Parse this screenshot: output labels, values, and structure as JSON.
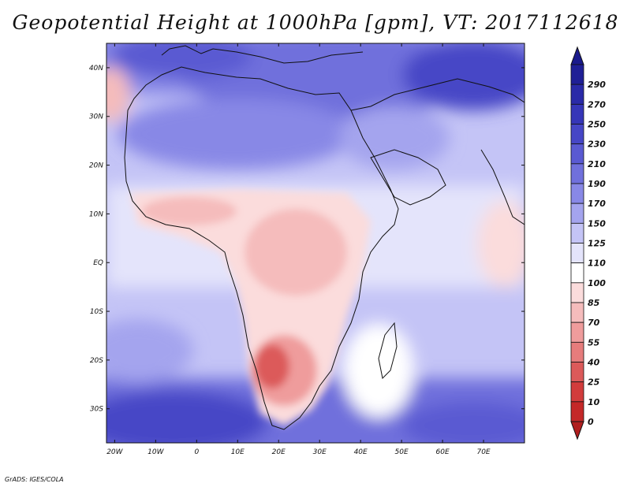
{
  "title": "Geopotential Height at 1000hPa [gpm], VT: 2017112618",
  "credit": "GrADS: IGES/COLA",
  "map": {
    "lon_range": [
      -22,
      80
    ],
    "lat_range": [
      -37,
      45
    ],
    "lon_ticks": [
      {
        "value": -20,
        "label": "20W"
      },
      {
        "value": -10,
        "label": "10W"
      },
      {
        "value": 0,
        "label": "0"
      },
      {
        "value": 10,
        "label": "10E"
      },
      {
        "value": 20,
        "label": "20E"
      },
      {
        "value": 30,
        "label": "30E"
      },
      {
        "value": 40,
        "label": "40E"
      },
      {
        "value": 50,
        "label": "50E"
      },
      {
        "value": 60,
        "label": "60E"
      },
      {
        "value": 70,
        "label": "70E"
      }
    ],
    "lat_ticks": [
      {
        "value": 40,
        "label": "40N"
      },
      {
        "value": 30,
        "label": "30N"
      },
      {
        "value": 20,
        "label": "20N"
      },
      {
        "value": 10,
        "label": "10N"
      },
      {
        "value": 0,
        "label": "EQ"
      },
      {
        "value": -10,
        "label": "10S"
      },
      {
        "value": -20,
        "label": "20S"
      },
      {
        "value": -30,
        "label": "30S"
      }
    ]
  },
  "colorbar": {
    "levels": [
      {
        "label": "290",
        "color": "#1f1f96"
      },
      {
        "label": "270",
        "color": "#2a2aa8"
      },
      {
        "label": "250",
        "color": "#3636b8"
      },
      {
        "label": "230",
        "color": "#4646c6"
      },
      {
        "label": "210",
        "color": "#5a5ad2"
      },
      {
        "label": "190",
        "color": "#7070dc"
      },
      {
        "label": "170",
        "color": "#8888e6"
      },
      {
        "label": "150",
        "color": "#a4a4ee"
      },
      {
        "label": "125",
        "color": "#c4c4f6"
      },
      {
        "label": "110",
        "color": "#e4e4fb"
      },
      {
        "label": "100",
        "color": "#ffffff"
      },
      {
        "label": "85",
        "color": "#fbdcdc"
      },
      {
        "label": "70",
        "color": "#f5bcbc"
      },
      {
        "label": "55",
        "color": "#ef9c9c"
      },
      {
        "label": "40",
        "color": "#e67c7c"
      },
      {
        "label": "25",
        "color": "#dc5a5a"
      },
      {
        "label": "10",
        "color": "#d23c3c"
      },
      {
        "label": "0",
        "color": "#c42828"
      }
    ],
    "top_color": "#1a1a8c",
    "bottom_color": "#b01e1e"
  }
}
